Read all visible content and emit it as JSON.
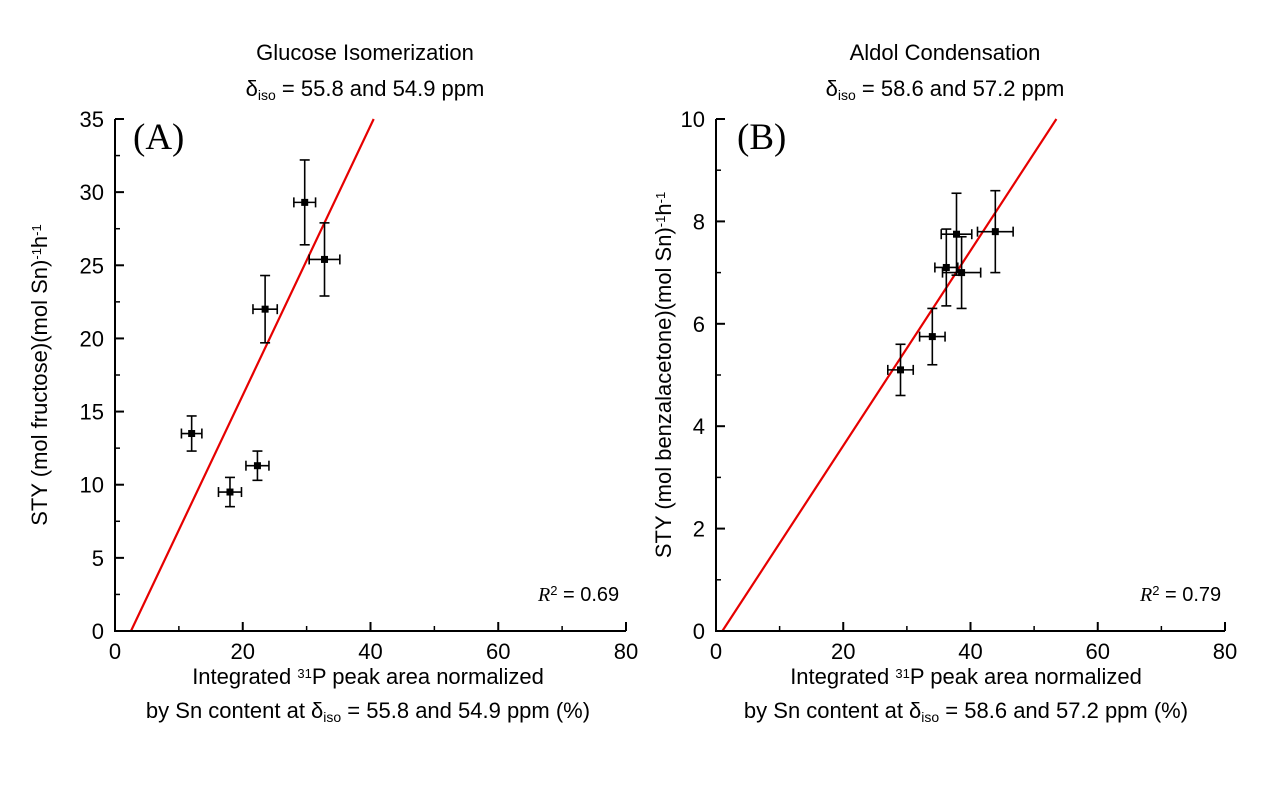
{
  "page": {
    "background": "#ffffff"
  },
  "chart_data": [
    {
      "type": "scatter",
      "panel_label": "(A)",
      "title": "Glucose Isomerization",
      "subtitle": {
        "delta": "δ",
        "sub": "iso",
        "rest": " = 55.8 and 54.9 ppm"
      },
      "ylabel": {
        "pre": "STY (mol fructose)(mol Sn)",
        "sup1": "-1",
        "mid": "h",
        "sup2": "-1"
      },
      "xlabel_line1": {
        "pre": "Integrated ",
        "sup": "31",
        "post": "P peak area normalized"
      },
      "xlabel_line2": {
        "pre": "by Sn content at ",
        "delta": "δ",
        "sub": "iso",
        "rest": " = 55.8 and 54.9 ppm (%)"
      },
      "r_squared": {
        "r": "R",
        "sup": "2",
        "rest": " = 0.69"
      },
      "xlim": [
        0,
        80
      ],
      "ylim": [
        0,
        35
      ],
      "x_major_ticks": [
        0,
        20,
        40,
        60,
        80
      ],
      "x_minor_ticks": [
        10,
        30,
        50,
        70
      ],
      "y_major_ticks": [
        0,
        5,
        10,
        15,
        20,
        25,
        30,
        35
      ],
      "y_minor_ticks": [
        2.5,
        7.5,
        12.5,
        17.5,
        22.5,
        27.5,
        32.5
      ],
      "points": [
        {
          "x": 12.0,
          "y": 13.5,
          "xerr": 1.6,
          "yerr": 1.2
        },
        {
          "x": 18.0,
          "y": 9.5,
          "xerr": 1.8,
          "yerr": 1.0
        },
        {
          "x": 22.3,
          "y": 11.3,
          "xerr": 1.8,
          "yerr": 1.0
        },
        {
          "x": 23.5,
          "y": 22.0,
          "xerr": 1.9,
          "yerr": 2.3
        },
        {
          "x": 29.7,
          "y": 29.3,
          "xerr": 1.7,
          "yerr": 2.9
        },
        {
          "x": 32.8,
          "y": 25.4,
          "xerr": 2.4,
          "yerr": 2.5
        }
      ],
      "fit_line": {
        "x1": 2.5,
        "y1": 0,
        "x2": 40.5,
        "y2": 35,
        "color": "#e60000"
      },
      "marker_color": "#000000",
      "legend": "none",
      "grid": false
    },
    {
      "type": "scatter",
      "panel_label": "(B)",
      "title": "Aldol Condensation",
      "subtitle": {
        "delta": "δ",
        "sub": "iso",
        "rest": " = 58.6 and 57.2 ppm"
      },
      "ylabel": {
        "pre": "STY (mol benzalacetone)(mol Sn)",
        "sup1": "-1",
        "mid": "h",
        "sup2": "-1"
      },
      "xlabel_line1": {
        "pre": "Integrated ",
        "sup": "31",
        "post": "P peak area normalized"
      },
      "xlabel_line2": {
        "pre": "by Sn content at ",
        "delta": "δ",
        "sub": "iso",
        "rest": " = 58.6 and 57.2 ppm (%)"
      },
      "r_squared": {
        "r": "R",
        "sup": "2",
        "rest": " = 0.79"
      },
      "xlim": [
        0,
        80
      ],
      "ylim": [
        0,
        10
      ],
      "x_major_ticks": [
        0,
        20,
        40,
        60,
        80
      ],
      "x_minor_ticks": [
        10,
        30,
        50,
        70
      ],
      "y_major_ticks": [
        0,
        2,
        4,
        6,
        8,
        10
      ],
      "y_minor_ticks": [
        1,
        3,
        5,
        7,
        9
      ],
      "points": [
        {
          "x": 29.0,
          "y": 5.1,
          "xerr": 2.0,
          "yerr": 0.5
        },
        {
          "x": 34.0,
          "y": 5.75,
          "xerr": 2.0,
          "yerr": 0.55
        },
        {
          "x": 36.2,
          "y": 7.1,
          "xerr": 1.8,
          "yerr": 0.75
        },
        {
          "x": 37.8,
          "y": 7.75,
          "xerr": 2.4,
          "yerr": 0.8
        },
        {
          "x": 38.6,
          "y": 7.0,
          "xerr": 3.0,
          "yerr": 0.7
        },
        {
          "x": 43.9,
          "y": 7.8,
          "xerr": 2.8,
          "yerr": 0.8
        }
      ],
      "fit_line": {
        "x1": 1.0,
        "y1": 0,
        "x2": 53.5,
        "y2": 10,
        "color": "#e60000"
      },
      "marker_color": "#000000",
      "legend": "none",
      "grid": false
    }
  ]
}
